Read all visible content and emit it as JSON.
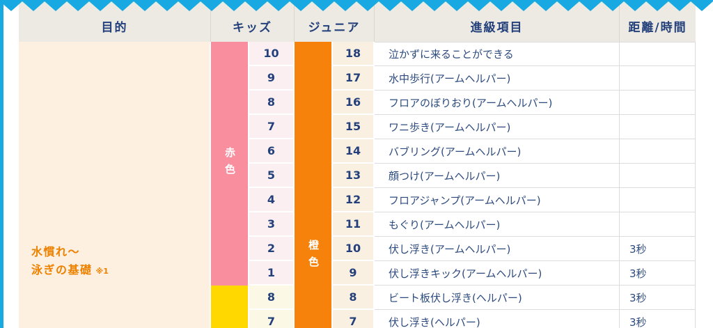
{
  "header": {
    "col_purpose": "目的",
    "col_kids": "キッズ",
    "col_junior": "ジュニア",
    "col_items": "進級項目",
    "col_distance": "距離/時間"
  },
  "purpose": {
    "line1": "水慣れ〜",
    "line2": "泳ぎの基礎",
    "note": "※1"
  },
  "bands": {
    "red": "赤色",
    "orange": "橙色"
  },
  "rows": [
    {
      "kids": "10",
      "junior": "18",
      "item": "泣かずに来ることができる",
      "distance": ""
    },
    {
      "kids": "9",
      "junior": "17",
      "item": "水中歩行(アームヘルパー)",
      "distance": ""
    },
    {
      "kids": "8",
      "junior": "16",
      "item": "フロアのぼりおり(アームヘルパー)",
      "distance": ""
    },
    {
      "kids": "7",
      "junior": "15",
      "item": "ワニ歩き(アームヘルパー)",
      "distance": ""
    },
    {
      "kids": "6",
      "junior": "14",
      "item": "バブリング(アームヘルパー)",
      "distance": ""
    },
    {
      "kids": "5",
      "junior": "13",
      "item": "顔つけ(アームヘルパー)",
      "distance": ""
    },
    {
      "kids": "4",
      "junior": "12",
      "item": "フロアジャンプ(アームヘルパー)",
      "distance": ""
    },
    {
      "kids": "3",
      "junior": "11",
      "item": "もぐり(アームヘルパー)",
      "distance": ""
    },
    {
      "kids": "2",
      "junior": "10",
      "item": "伏し浮き(アームヘルパー)",
      "distance": "3秒"
    },
    {
      "kids": "1",
      "junior": "9",
      "item": "伏し浮きキック(アームヘルパー)",
      "distance": "3秒"
    },
    {
      "kids": "8",
      "junior": "8",
      "item": "ビート板伏し浮き(ヘルパー)",
      "distance": "3秒"
    },
    {
      "kids": "7",
      "junior": "7",
      "item": "伏し浮き(ヘルパー)",
      "distance": "3秒"
    }
  ],
  "colors": {
    "accent_blue": "#18A8E2",
    "header_bg": "#ECEAE3",
    "navy_text": "#24407B",
    "red_band": "#F98E9E",
    "yellow_band": "#FFD800",
    "orange_band": "#F6820C",
    "purpose_bg": "#FDF0E1",
    "purpose_text": "#ED8100",
    "kids_cell_red_bg": "#FBEFF2",
    "kids_cell_yellow_bg": "#FCF8E6",
    "junior_cell_bg": "#FAF0E2"
  }
}
